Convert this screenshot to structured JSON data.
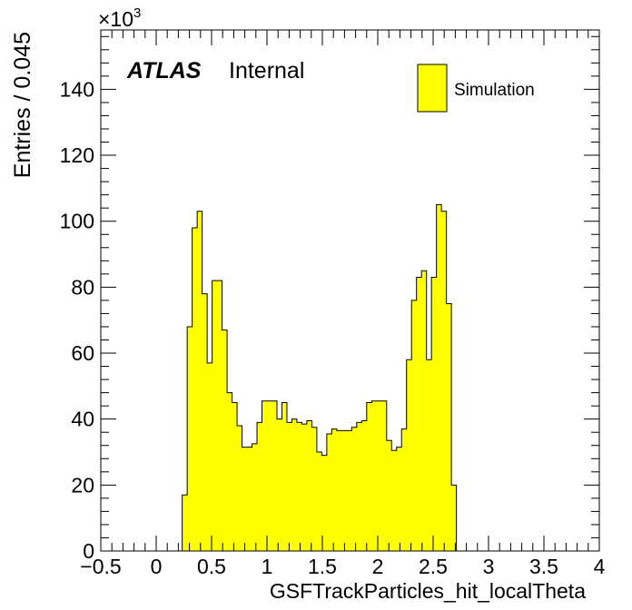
{
  "chart_data": {
    "type": "histogram",
    "xlabel": "GSFTrackParticles_hit_localTheta",
    "ylabel": "Entries / 0.045",
    "y_multiplier_label": "×10",
    "y_multiplier_exp": "3",
    "atlas_label": "ATLAS",
    "atlas_status": "Internal",
    "legend": {
      "entries": [
        "Simulation"
      ],
      "position": "top-right"
    },
    "xlim": [
      -0.5,
      4.0
    ],
    "ylim": [
      0,
      158
    ],
    "bin_width": 0.045,
    "fill_color": "#ffff00",
    "line_color": "#000000",
    "x_ticks": [
      -0.5,
      0,
      0.5,
      1,
      1.5,
      2,
      2.5,
      3,
      3.5,
      4
    ],
    "x_tick_labels": [
      "−0.5",
      "0",
      "0.5",
      "1",
      "1.5",
      "2",
      "2.5",
      "3",
      "3.5",
      "4"
    ],
    "y_ticks": [
      0,
      20,
      40,
      60,
      80,
      100,
      120,
      140
    ],
    "y_tick_labels": [
      "0",
      "20",
      "40",
      "60",
      "80",
      "100",
      "120",
      "140"
    ],
    "bin_start": 0.235,
    "values": [
      17,
      68,
      98,
      103,
      78,
      57,
      82,
      82,
      67,
      48,
      45,
      38,
      31.5,
      31.5,
      32.5,
      39,
      45.5,
      45.5,
      45.5,
      40,
      45,
      39,
      40,
      39,
      38.5,
      39.5,
      37.5,
      30,
      29,
      35.5,
      37,
      36.5,
      36.5,
      36.5,
      37.5,
      39,
      39.5,
      45,
      45.5,
      45.5,
      45.5,
      33.5,
      30.5,
      31.5,
      37,
      58,
      76,
      83,
      85,
      58,
      83,
      105,
      103,
      75,
      20
    ]
  }
}
